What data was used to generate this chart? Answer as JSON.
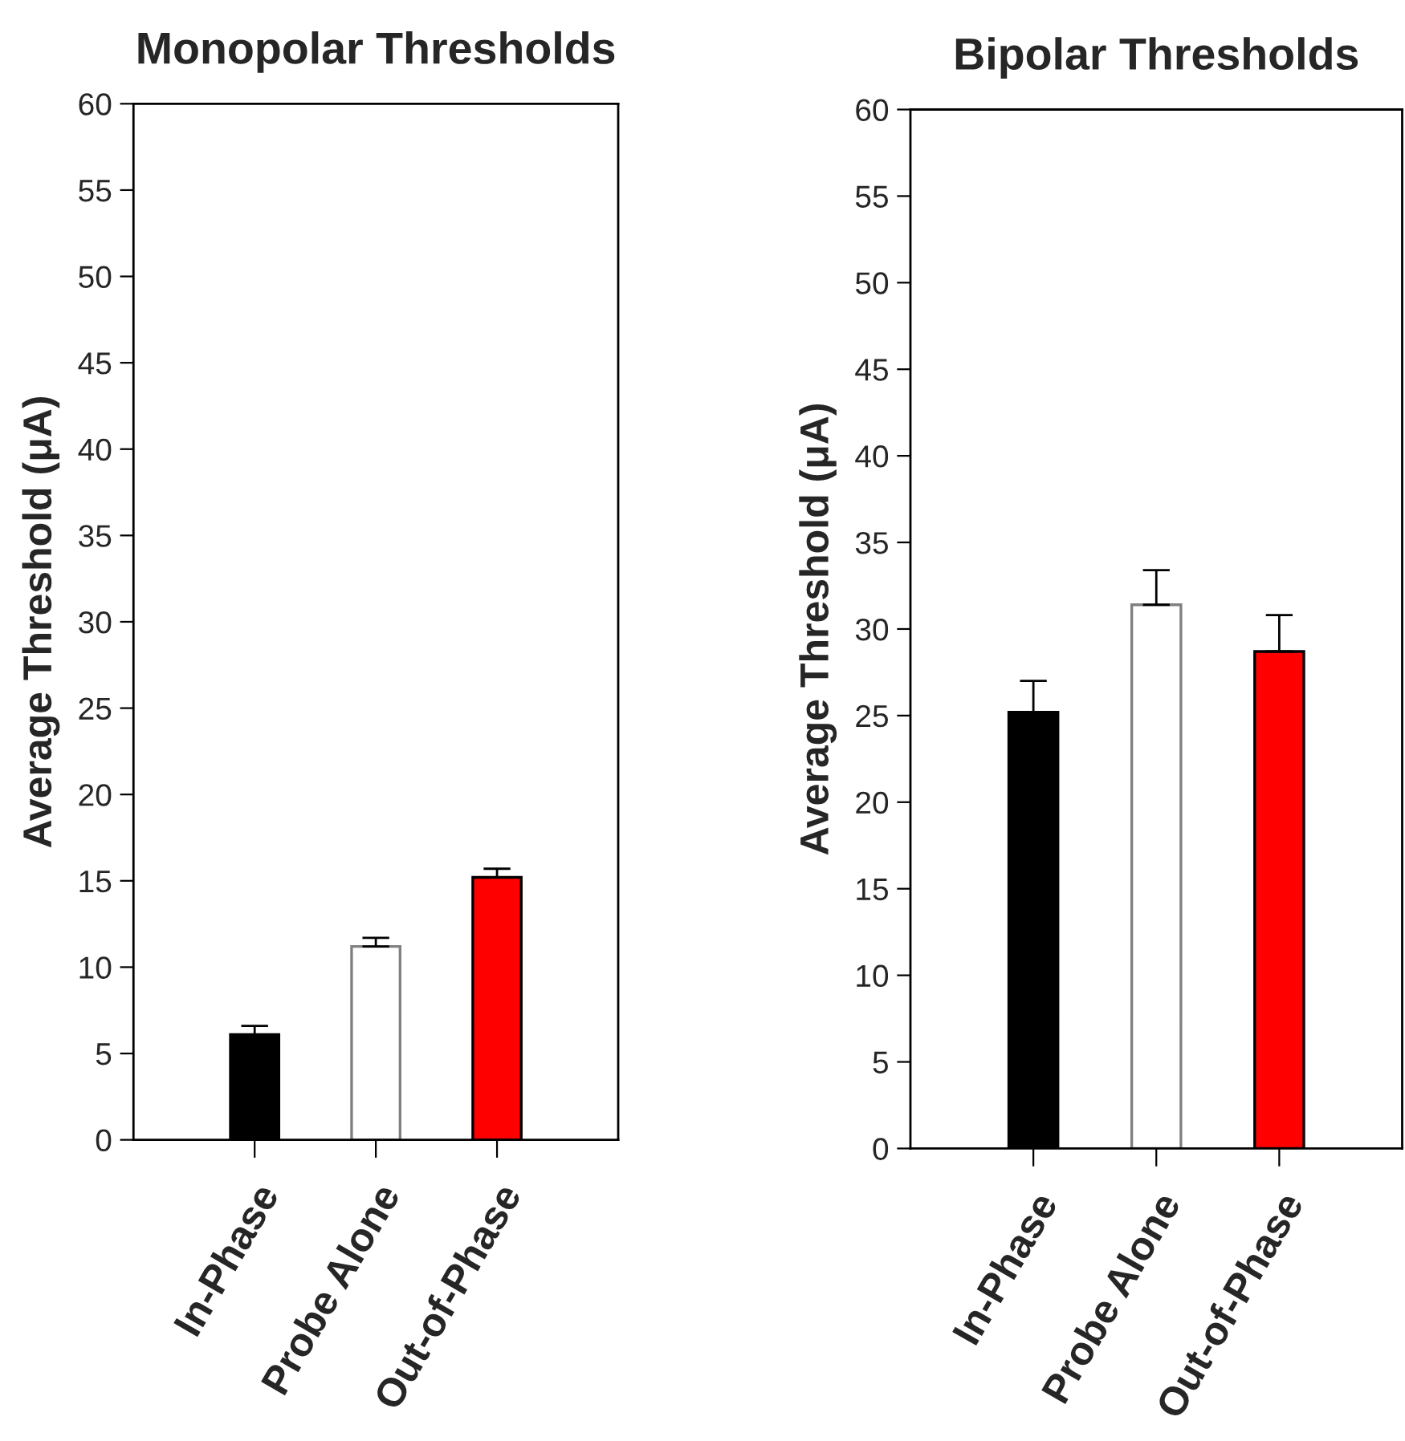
{
  "chart_data": [
    {
      "type": "bar",
      "title": "Monopolar Thresholds",
      "ylabel": "Average Threshold (μA)",
      "categories": [
        "In-Phase",
        "Probe Alone",
        "Out-of-Phase"
      ],
      "values": [
        6.1,
        11.2,
        15.2
      ],
      "errors": [
        [
          6.1,
          6.6
        ],
        [
          11.2,
          11.7
        ],
        [
          15.2,
          15.7
        ]
      ],
      "colors": [
        "#000000",
        "#ffffff",
        "#ff0000"
      ],
      "ylim": [
        0,
        60
      ],
      "yticks": [
        0,
        5,
        10,
        15,
        20,
        25,
        30,
        35,
        40,
        45,
        50,
        55,
        60
      ],
      "grid": false
    },
    {
      "type": "bar",
      "title": "Bipolar Thresholds",
      "ylabel": "Average Threshold (μA)",
      "categories": [
        "In-Phase",
        "Probe Alone",
        "Out-of-Phase"
      ],
      "values": [
        25.2,
        31.4,
        28.7
      ],
      "errors": [
        [
          25.2,
          27.0
        ],
        [
          31.4,
          33.4
        ],
        [
          28.7,
          30.8
        ]
      ],
      "colors": [
        "#000000",
        "#ffffff",
        "#ff0000"
      ],
      "ylim": [
        0,
        60
      ],
      "yticks": [
        0,
        5,
        10,
        15,
        20,
        25,
        30,
        35,
        40,
        45,
        50,
        55,
        60
      ],
      "grid": false
    }
  ]
}
